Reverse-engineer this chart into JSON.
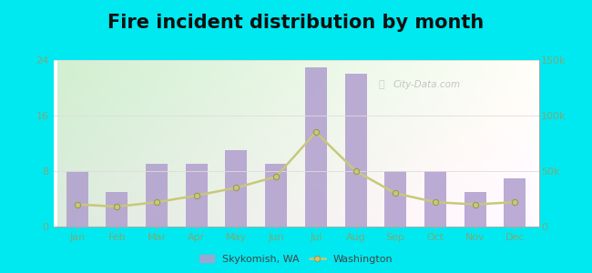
{
  "months": [
    "Jan",
    "Feb",
    "Mar",
    "Apr",
    "May",
    "Jun",
    "Jul",
    "Aug",
    "Sep",
    "Oct",
    "Nov",
    "Dec"
  ],
  "skykomish_values": [
    8,
    5,
    9,
    9,
    11,
    9,
    23,
    22,
    8,
    8,
    5,
    7
  ],
  "washington_values": [
    20000,
    18000,
    22000,
    28000,
    35000,
    45000,
    85000,
    50000,
    30000,
    22000,
    20000,
    22000
  ],
  "bar_color": "#b09ece",
  "line_color": "#c8c87a",
  "line_marker": "o",
  "outer_bg": "#00e8f0",
  "title": "Fire incident distribution by month",
  "title_fontsize": 15,
  "left_ylim": [
    0,
    24
  ],
  "left_yticks": [
    0,
    8,
    16,
    24
  ],
  "right_ylim": [
    0,
    150000
  ],
  "right_yticks": [
    0,
    50000,
    100000,
    150000
  ],
  "legend_skykomish": "Skykomish, WA",
  "legend_washington": "Washington",
  "watermark": "City-Data.com",
  "tick_color": "#7aaa7a",
  "grid_color": "#dddddd"
}
